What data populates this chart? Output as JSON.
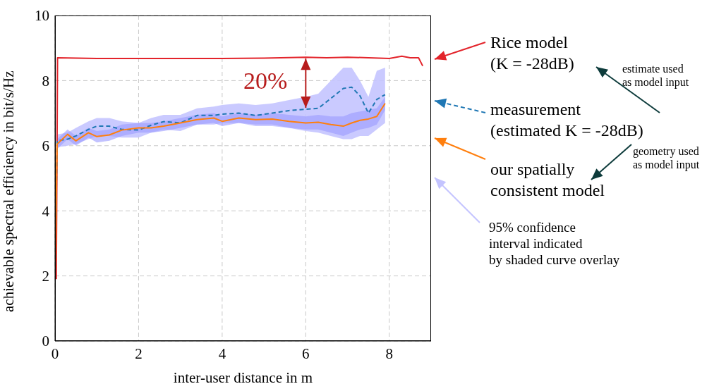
{
  "chart_data": {
    "type": "line",
    "xlabel": "inter-user distance in m",
    "ylabel": "achievable spectral efficiency in bit/s/Hz",
    "xlim": [
      0,
      9
    ],
    "ylim": [
      0,
      10
    ],
    "xticks": [
      0,
      2,
      4,
      6,
      8
    ],
    "yticks": [
      0,
      2,
      4,
      6,
      8,
      10
    ],
    "grid": true,
    "legend": "right",
    "marker": "none",
    "x": [
      0,
      0.05,
      0.3,
      0.5,
      0.8,
      1.0,
      1.3,
      1.6,
      2.0,
      2.3,
      2.6,
      3.0,
      3.4,
      3.8,
      4.0,
      4.4,
      4.8,
      5.2,
      5.6,
      6.0,
      6.3,
      6.6,
      6.9,
      7.1,
      7.3,
      7.5,
      7.7,
      7.9
    ],
    "series": [
      {
        "name": "Rice model\n(K = -28dB)",
        "color": "#e3242b",
        "line_style": "solid",
        "x": [
          0.03,
          0.06,
          1,
          2,
          3,
          4,
          5,
          6,
          6.5,
          7,
          7.5,
          8,
          8.3,
          8.5,
          8.7,
          8.8
        ],
        "values": [
          1.9,
          8.7,
          8.68,
          8.68,
          8.68,
          8.68,
          8.69,
          8.72,
          8.7,
          8.72,
          8.7,
          8.68,
          8.75,
          8.7,
          8.7,
          8.45
        ]
      },
      {
        "name": "measurement\n(estimated K = -28dB)",
        "color": "#1f77b4",
        "line_style": "dashed",
        "values": [
          1.9,
          6.15,
          6.2,
          6.3,
          6.5,
          6.6,
          6.6,
          6.5,
          6.48,
          6.63,
          6.74,
          6.7,
          6.93,
          6.93,
          6.97,
          7.0,
          6.93,
          7.0,
          7.08,
          7.12,
          7.15,
          7.45,
          7.76,
          7.8,
          7.53,
          7.0,
          7.42,
          7.57
        ],
        "upper": [
          1.9,
          6.35,
          6.4,
          6.55,
          6.75,
          6.85,
          6.85,
          6.75,
          6.7,
          6.85,
          6.95,
          6.95,
          7.15,
          7.2,
          7.25,
          7.3,
          7.25,
          7.3,
          7.4,
          7.5,
          7.6,
          8.0,
          8.4,
          8.4,
          8.0,
          7.5,
          8.3,
          8.4
        ],
        "lower": [
          1.9,
          5.95,
          6.0,
          6.05,
          6.2,
          6.3,
          6.3,
          6.25,
          6.25,
          6.4,
          6.5,
          6.45,
          6.65,
          6.65,
          6.7,
          6.7,
          6.6,
          6.6,
          6.55,
          6.45,
          6.4,
          6.3,
          6.2,
          6.2,
          6.3,
          6.3,
          6.5,
          6.7
        ]
      },
      {
        "name": "our spatially\nconsistent model",
        "color": "#ff7f0e",
        "line_style": "solid",
        "values": [
          1.9,
          6.05,
          6.35,
          6.15,
          6.4,
          6.28,
          6.33,
          6.48,
          6.55,
          6.55,
          6.6,
          6.7,
          6.8,
          6.85,
          6.75,
          6.85,
          6.8,
          6.82,
          6.75,
          6.7,
          6.72,
          6.65,
          6.6,
          6.7,
          6.78,
          6.82,
          6.9,
          7.3
        ],
        "upper": [
          1.9,
          6.2,
          6.5,
          6.3,
          6.55,
          6.45,
          6.5,
          6.65,
          6.7,
          6.7,
          6.75,
          6.85,
          6.95,
          7.0,
          6.9,
          7.0,
          6.95,
          7.0,
          6.95,
          6.9,
          6.95,
          6.9,
          6.9,
          7.0,
          7.05,
          7.1,
          7.15,
          7.5
        ],
        "lower": [
          1.9,
          5.9,
          6.2,
          6.0,
          6.25,
          6.1,
          6.15,
          6.3,
          6.4,
          6.4,
          6.45,
          6.55,
          6.65,
          6.7,
          6.6,
          6.7,
          6.65,
          6.65,
          6.55,
          6.5,
          6.5,
          6.4,
          6.3,
          6.4,
          6.5,
          6.55,
          6.65,
          7.1
        ]
      }
    ],
    "annotations": [
      "20%",
      "estimate used\nas model input",
      "geometry used\nas model input",
      "95% confidence\ninterval indicated\nby shaded curve overlay"
    ]
  }
}
